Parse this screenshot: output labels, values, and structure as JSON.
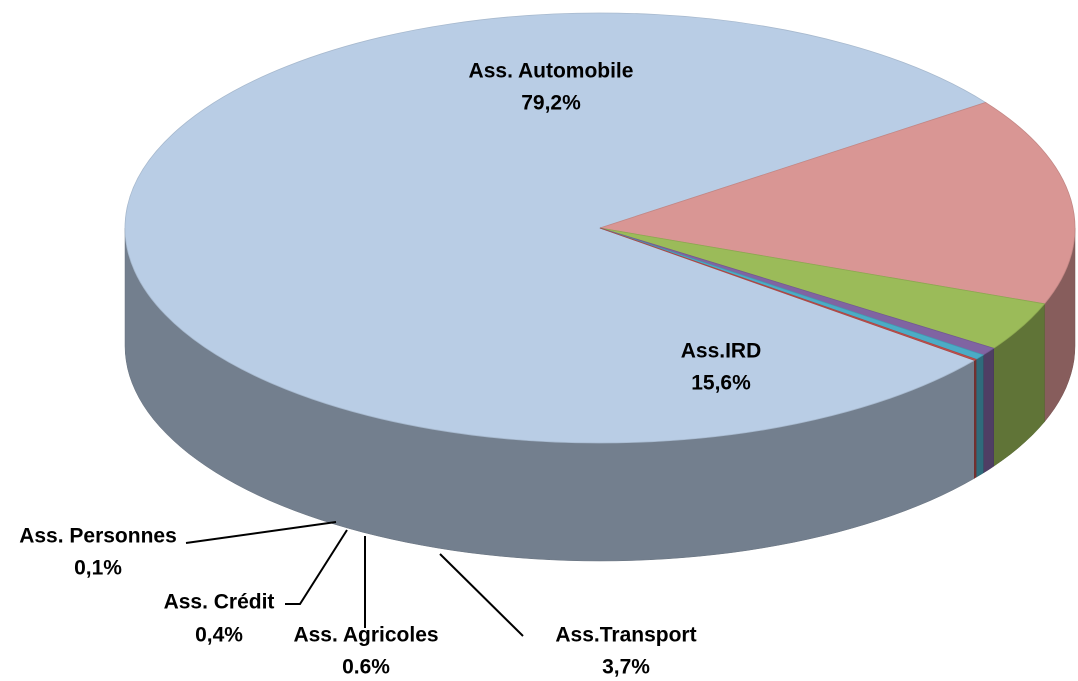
{
  "chart_data": {
    "type": "pie3d",
    "categories": [
      "Ass. Automobile",
      "Ass.IRD",
      "Ass.Transport",
      "Ass. Agricoles",
      "Ass. Crédit",
      "Ass. Personnes"
    ],
    "values": [
      79.2,
      15.6,
      3.7,
      0.6,
      0.4,
      0.1
    ],
    "value_labels": [
      "79,2%",
      "15,6%",
      "3,7%",
      "0.6%",
      "0,4%",
      "0,1%"
    ],
    "colors": [
      "#b9cde5",
      "#d99694",
      "#9bbb59",
      "#8064a2",
      "#4bacc6",
      "#c0504d"
    ]
  }
}
